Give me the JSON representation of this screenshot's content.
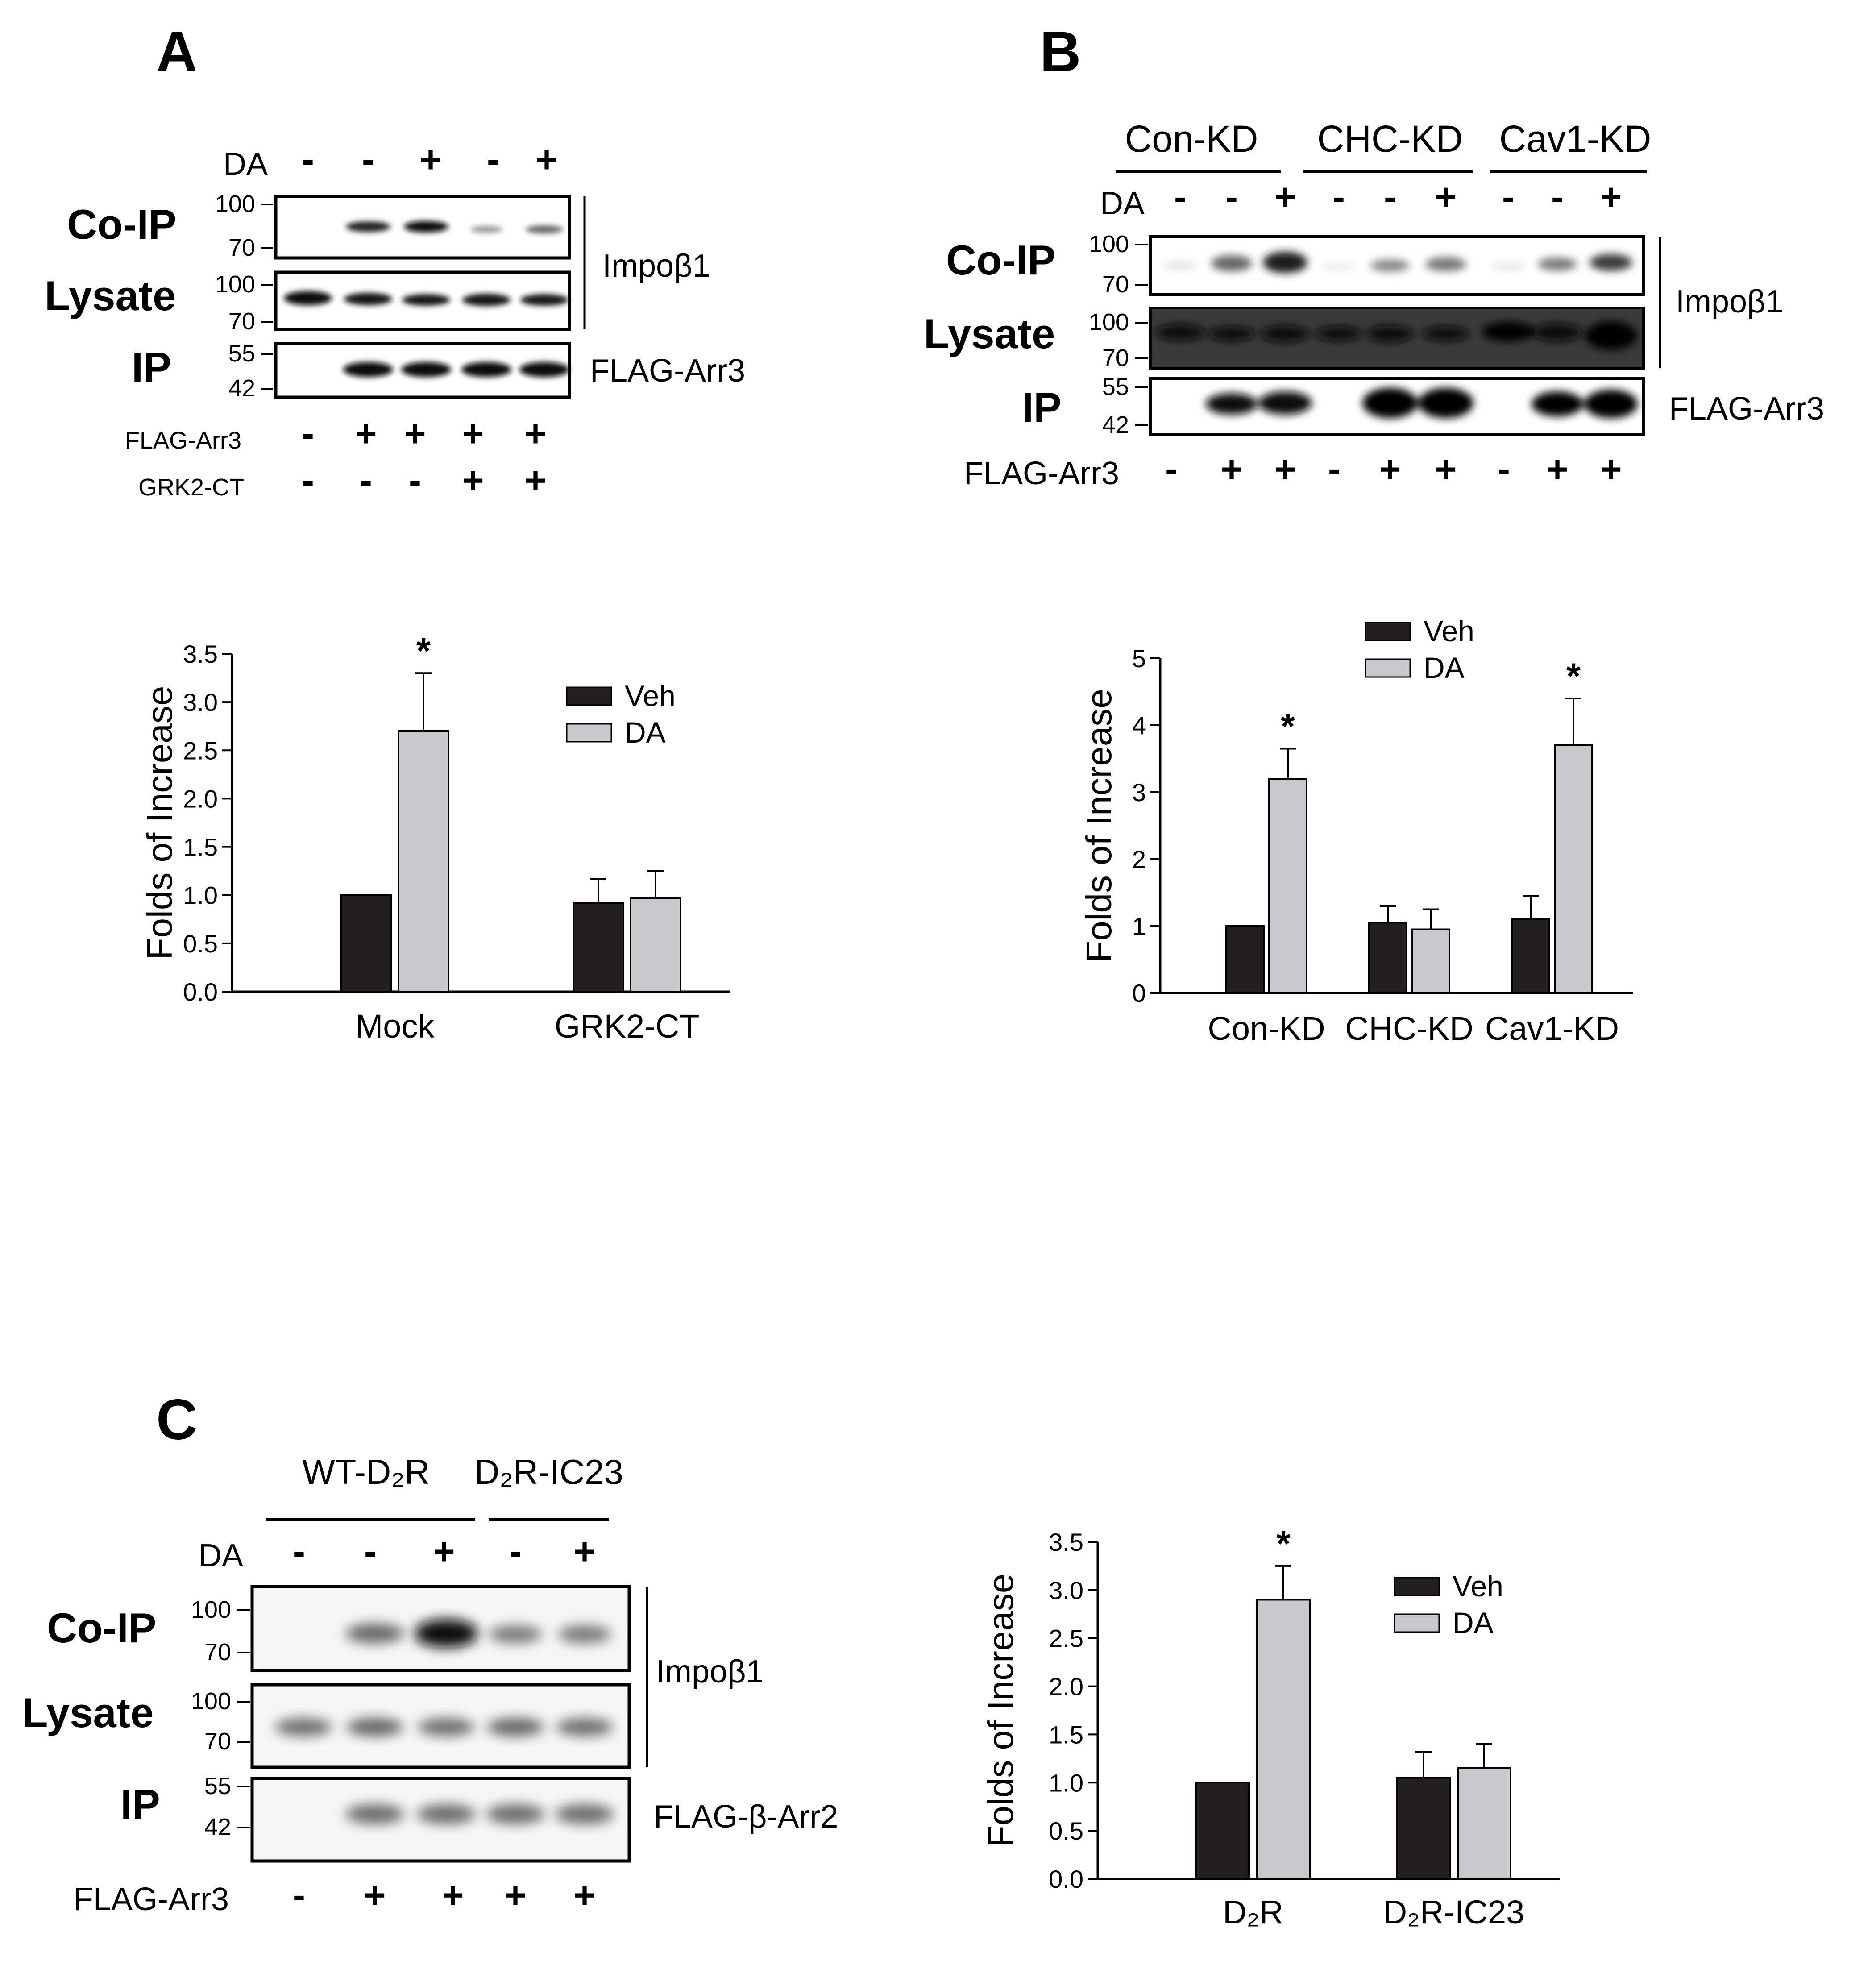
{
  "A": {
    "letter": "A",
    "dmso_label": "DA",
    "da": [
      "-",
      "-",
      "+",
      "-",
      "+"
    ],
    "rows": [
      "Co-IP",
      "Lysate",
      "IP"
    ],
    "mw": {
      "coip": [
        "100",
        "70"
      ],
      "lysate": [
        "100",
        "70"
      ],
      "ip": [
        "55",
        "42"
      ]
    },
    "right_labels": [
      "Impoβ1",
      "FLAG-Arr3"
    ],
    "bottom_rows": [
      {
        "label": "FLAG-Arr3",
        "signs": [
          "-",
          "+",
          "+",
          "+",
          "+"
        ]
      },
      {
        "label": "GRK2-CT",
        "signs": [
          "-",
          "-",
          "-",
          "+",
          "+"
        ]
      }
    ]
  },
  "B": {
    "letter": "B",
    "groups": [
      "Con-KD",
      "CHC-KD",
      "Cav1-KD"
    ],
    "dmso_label": "DA",
    "da": [
      "-",
      "-",
      "+",
      "-",
      "-",
      "+",
      "-",
      "-",
      "+"
    ],
    "rows": [
      "Co-IP",
      "Lysate",
      "IP"
    ],
    "mw": {
      "coip": [
        "100",
        "70"
      ],
      "lysate": [
        "100",
        "70"
      ],
      "ip": [
        "55",
        "42"
      ]
    },
    "right_labels": [
      "Impoβ1",
      "FLAG-Arr3"
    ],
    "bottom_rows": [
      {
        "label": "FLAG-Arr3",
        "signs": [
          "-",
          "+",
          "+",
          "-",
          "+",
          "+",
          "-",
          "+",
          "+"
        ]
      }
    ]
  },
  "C": {
    "letter": "C",
    "groups": [
      "WT-D₂R",
      "D₂R-IC23"
    ],
    "dmso_label": "DA",
    "da": [
      "-",
      "-",
      "+",
      "-",
      "+"
    ],
    "rows": [
      "Co-IP",
      "Lysate",
      "IP"
    ],
    "mw": {
      "coip": [
        "100",
        "70"
      ],
      "lysate": [
        "100",
        "70"
      ],
      "ip": [
        "55",
        "42"
      ]
    },
    "right_labels": [
      "Impoβ1",
      "FLAG-β-Arr2"
    ],
    "bottom_rows": [
      {
        "label": "FLAG-Arr3",
        "signs": [
          "-",
          "+",
          "+",
          "+",
          "+"
        ]
      }
    ]
  },
  "colors": {
    "veh": "#231f20",
    "da": "#c8c9cb",
    "blot_bg_dark": "#3a3a3a"
  },
  "chart_data": [
    {
      "panel": "A",
      "type": "bar",
      "categories": [
        "Mock",
        "GRK2-CT"
      ],
      "series": [
        {
          "name": "Veh",
          "values": [
            1.0,
            0.92
          ],
          "errors": [
            0,
            0.25
          ]
        },
        {
          "name": "DA",
          "values": [
            2.7,
            0.97
          ],
          "errors": [
            0.6,
            0.28
          ]
        }
      ],
      "significant": [
        [
          false,
          true
        ],
        [
          false,
          false
        ]
      ],
      "ylabel": "Folds of Increase",
      "ylim": [
        0,
        3.5
      ],
      "yticks": [
        "0.0",
        "0.5",
        "1.0",
        "1.5",
        "2.0",
        "2.5",
        "3.0",
        "3.5"
      ],
      "legend": "top-right"
    },
    {
      "panel": "B",
      "type": "bar",
      "categories": [
        "Con-KD",
        "CHC-KD",
        "Cav1-KD"
      ],
      "series": [
        {
          "name": "Veh",
          "values": [
            1.0,
            1.05,
            1.1
          ],
          "errors": [
            0,
            0.25,
            0.35
          ]
        },
        {
          "name": "DA",
          "values": [
            3.2,
            0.95,
            3.7
          ],
          "errors": [
            0.45,
            0.3,
            0.7
          ]
        }
      ],
      "significant": [
        [
          false,
          true
        ],
        [
          false,
          false
        ],
        [
          false,
          true
        ]
      ],
      "ylabel": "Folds of Increase",
      "ylim": [
        0,
        5
      ],
      "yticks": [
        "0",
        "1",
        "2",
        "3",
        "4",
        "5"
      ],
      "legend": "top"
    },
    {
      "panel": "C",
      "type": "bar",
      "categories": [
        "D₂R",
        "D₂R-IC23"
      ],
      "series": [
        {
          "name": "Veh",
          "values": [
            1.0,
            1.05
          ],
          "errors": [
            0,
            0.27
          ]
        },
        {
          "name": "DA",
          "values": [
            2.9,
            1.15
          ],
          "errors": [
            0.35,
            0.25
          ]
        }
      ],
      "significant": [
        [
          false,
          true
        ],
        [
          false,
          false
        ]
      ],
      "ylabel": "Folds of Increase",
      "ylim": [
        0,
        3.5
      ],
      "yticks": [
        "0.0",
        "0.5",
        "1.0",
        "1.5",
        "2.0",
        "2.5",
        "3.0",
        "3.5"
      ],
      "legend": "top-right"
    }
  ]
}
